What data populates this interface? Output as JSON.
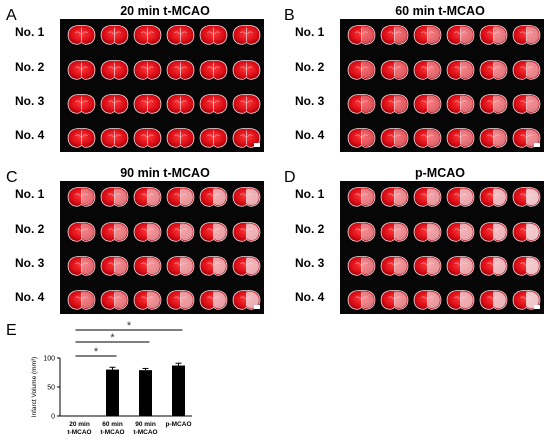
{
  "panels": [
    {
      "letter": "A",
      "title": "20 min t-MCAO",
      "rows": [
        "No. 1",
        "No. 2",
        "No. 3",
        "No. 4"
      ]
    },
    {
      "letter": "B",
      "title": "60 min t-MCAO",
      "rows": [
        "No. 1",
        "No. 2",
        "No. 3",
        "No. 4"
      ]
    },
    {
      "letter": "C",
      "title": "90 min t-MCAO",
      "rows": [
        "No. 1",
        "No. 2",
        "No. 3",
        "No. 4"
      ]
    },
    {
      "letter": "D",
      "title": "p-MCAO",
      "rows": [
        "No. 1",
        "No. 2",
        "No. 3",
        "No. 4"
      ]
    }
  ],
  "chart_panel_letter": "E",
  "chart_data": {
    "type": "bar",
    "categories": [
      "20 min\nt-MCAO",
      "60 min\nt-MCAO",
      "90 min\nt-MCAO",
      "p-MCAO"
    ],
    "values": [
      0,
      80,
      79,
      87
    ],
    "errors": [
      0,
      4,
      3,
      4
    ],
    "ylabel": "Infarct Volume (mm³)",
    "ylim": [
      0,
      100
    ],
    "yticks": [
      0,
      50,
      100
    ],
    "significance": [
      {
        "from": 0,
        "to": 1,
        "label": "*"
      },
      {
        "from": 0,
        "to": 2,
        "label": "*"
      },
      {
        "from": 0,
        "to": 3,
        "label": "*"
      }
    ],
    "bar_color": "#000000"
  },
  "colors": {
    "tissue_red": "#d80a14",
    "infarct_white": "#efe3e6",
    "background": "#060606"
  }
}
